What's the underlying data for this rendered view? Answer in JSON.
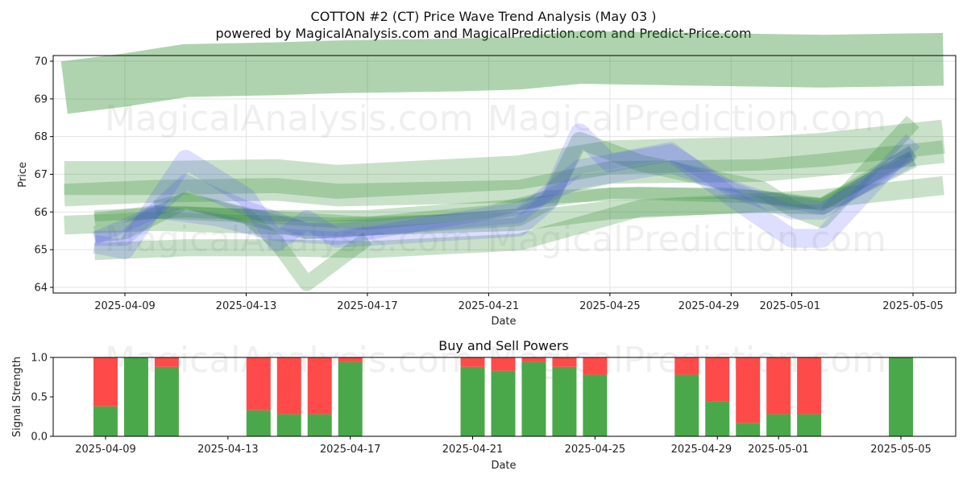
{
  "chart_data": [
    {
      "type": "area",
      "title": "COTTON #2 (CT) Price Wave Trend Analysis (May 03 )",
      "subtitle": "powered by MagicalAnalysis.com and MagicalPrediction.com and Predict-Price.com",
      "xlabel": "Date",
      "ylabel": "Price",
      "ylim": [
        63.85,
        70.15
      ],
      "yticks": [
        "64",
        "65",
        "66",
        "67",
        "68",
        "69",
        "70"
      ],
      "xticks": [
        "2025-04-09",
        "2025-04-13",
        "2025-04-17",
        "2025-04-21",
        "2025-04-25",
        "2025-04-29",
        "2025-05-01",
        "2025-05-05"
      ],
      "grid": true,
      "watermarks": [
        "MagicalAnalysis.com",
        "MagicalPrediction.com"
      ],
      "series": [
        {
          "color": "#2e8b2e",
          "x": [
            "2025-04-07",
            "2025-04-09",
            "2025-04-11",
            "2025-04-14",
            "2025-04-16",
            "2025-04-20",
            "2025-04-22",
            "2025-04-24",
            "2025-04-28",
            "2025-05-02",
            "2025-05-06"
          ],
          "y": [
            69.3,
            69.5,
            69.75,
            69.8,
            69.85,
            69.9,
            69.95,
            70.1,
            70.05,
            70.0,
            70.05
          ],
          "width": 1.4
        },
        {
          "color": "#2e8b2e",
          "x": [
            "2025-04-07",
            "2025-04-10",
            "2025-04-14",
            "2025-04-16",
            "2025-04-22",
            "2025-04-25",
            "2025-04-30",
            "2025-05-02",
            "2025-05-06"
          ],
          "y": [
            66.9,
            66.9,
            66.95,
            66.8,
            67.05,
            67.45,
            67.55,
            67.65,
            68.0
          ],
          "width": 0.9
        },
        {
          "color": "#2e8b2e",
          "x": [
            "2025-04-07",
            "2025-04-10",
            "2025-04-14",
            "2025-04-16",
            "2025-04-22",
            "2025-04-25",
            "2025-04-30",
            "2025-05-02",
            "2025-05-06"
          ],
          "y": [
            66.45,
            66.55,
            66.6,
            66.45,
            66.55,
            67.05,
            67.1,
            67.25,
            67.6
          ],
          "width": 0.6
        },
        {
          "color": "#2e8b2e",
          "x": [
            "2025-04-07",
            "2025-04-10",
            "2025-04-14",
            "2025-04-16",
            "2025-04-22",
            "2025-04-25",
            "2025-04-30",
            "2025-05-02",
            "2025-05-06"
          ],
          "y": [
            65.65,
            65.75,
            65.65,
            65.6,
            65.75,
            66.05,
            66.25,
            66.35,
            66.7
          ],
          "width": 0.5
        },
        {
          "color": "#2e8b2e",
          "x": [
            "2025-04-08",
            "2025-04-09",
            "2025-04-11",
            "2025-04-13",
            "2025-04-15",
            "2025-04-17",
            "2025-04-22",
            "2025-04-23",
            "2025-04-24",
            "2025-04-26",
            "2025-04-30",
            "2025-05-01",
            "2025-05-02",
            "2025-05-05"
          ],
          "y": [
            65.4,
            65.5,
            66.3,
            65.9,
            65.5,
            65.6,
            65.85,
            66.3,
            67.9,
            67.3,
            66.6,
            66.1,
            65.8,
            68.4
          ],
          "width": 0.45
        },
        {
          "color": "#2e8b2e",
          "x": [
            "2025-04-08",
            "2025-04-10",
            "2025-04-13",
            "2025-04-15",
            "2025-04-17",
            "2025-04-21",
            "2025-04-23",
            "2025-04-26",
            "2025-04-30",
            "2025-05-02",
            "2025-05-05"
          ],
          "y": [
            65.8,
            66.0,
            65.9,
            65.8,
            65.7,
            66.0,
            66.4,
            66.5,
            66.4,
            66.2,
            67.6
          ],
          "width": 0.35
        },
        {
          "color": "#2e8b2e",
          "x": [
            "2025-04-08",
            "2025-04-11",
            "2025-04-14",
            "2025-04-17",
            "2025-04-22",
            "2025-04-25",
            "2025-04-29",
            "2025-05-02",
            "2025-05-05"
          ],
          "y": [
            65.9,
            66.0,
            65.9,
            65.9,
            66.2,
            66.5,
            66.5,
            66.2,
            67.5
          ],
          "width": 0.3
        },
        {
          "color": "#2e8b2e",
          "x": [
            "2025-04-08",
            "2025-04-11",
            "2025-04-14",
            "2025-04-17",
            "2025-04-22",
            "2025-04-26",
            "2025-04-30",
            "2025-05-02",
            "2025-05-05"
          ],
          "y": [
            64.95,
            65.05,
            65.05,
            65.0,
            65.2,
            66.1,
            66.2,
            66.15,
            67.4
          ],
          "width": 0.45
        },
        {
          "color": "#2e8b2e",
          "x": [
            "2025-04-10",
            "2025-04-11",
            "2025-04-13",
            "2025-04-14",
            "2025-04-15",
            "2025-04-17"
          ],
          "y": [
            66.1,
            66.3,
            65.9,
            65.2,
            64.1,
            65.3
          ],
          "width": 0.4
        },
        {
          "color": "#4a4aff",
          "x": [
            "2025-04-08",
            "2025-04-09",
            "2025-04-11",
            "2025-04-13",
            "2025-04-14",
            "2025-04-15",
            "2025-04-16",
            "2025-04-22",
            "2025-04-23",
            "2025-04-24",
            "2025-04-25",
            "2025-04-27",
            "2025-04-29",
            "2025-05-01",
            "2025-05-02",
            "2025-05-05"
          ],
          "y": [
            65.15,
            65.0,
            67.4,
            66.4,
            65.2,
            65.8,
            65.3,
            65.6,
            66.3,
            68.1,
            67.3,
            67.6,
            66.4,
            65.3,
            65.3,
            67.9
          ],
          "width": 0.5
        },
        {
          "color": "#4a4aff",
          "x": [
            "2025-04-08",
            "2025-04-09",
            "2025-04-11",
            "2025-04-13",
            "2025-04-15",
            "2025-04-16",
            "2025-04-22",
            "2025-04-24",
            "2025-04-27",
            "2025-04-29",
            "2025-05-01",
            "2025-05-02",
            "2025-05-05"
          ],
          "y": [
            65.3,
            65.3,
            66.8,
            66.1,
            65.5,
            65.5,
            65.9,
            67.2,
            67.6,
            66.6,
            66.0,
            66.0,
            67.6
          ],
          "width": 0.4
        },
        {
          "color": "#4a4aff",
          "x": [
            "2025-04-08",
            "2025-04-10",
            "2025-04-12",
            "2025-04-14",
            "2025-04-16",
            "2025-04-22",
            "2025-04-24",
            "2025-04-27",
            "2025-04-30",
            "2025-05-02",
            "2025-05-05"
          ],
          "y": [
            65.3,
            66.0,
            65.8,
            65.4,
            65.3,
            66.1,
            66.8,
            67.2,
            66.4,
            66.1,
            67.4
          ],
          "width": 0.35
        }
      ]
    },
    {
      "type": "bar",
      "title": "Buy and Sell Powers",
      "xlabel": "Date",
      "ylabel": "Signal Strength",
      "ylim": [
        0,
        1.0
      ],
      "yticks": [
        "0.0",
        "0.5",
        "1.0"
      ],
      "xticks": [
        "2025-04-09",
        "2025-04-13",
        "2025-04-17",
        "2025-04-21",
        "2025-04-25",
        "2025-04-29",
        "2025-05-01",
        "2025-05-05"
      ],
      "categories": [
        "2025-04-09",
        "2025-04-10",
        "2025-04-11",
        "2025-04-14",
        "2025-04-15",
        "2025-04-16",
        "2025-04-17",
        "2025-04-21",
        "2025-04-22",
        "2025-04-23",
        "2025-04-24",
        "2025-04-25",
        "2025-04-28",
        "2025-04-29",
        "2025-04-30",
        "2025-05-01",
        "2025-05-02",
        "2025-05-05"
      ],
      "series": [
        {
          "color": "#4aa84a",
          "values": [
            0.38,
            1.0,
            0.88,
            0.33,
            0.28,
            0.28,
            0.94,
            0.88,
            0.83,
            0.94,
            0.88,
            0.78,
            0.78,
            0.44,
            0.17,
            0.28,
            0.28,
            1.0
          ]
        },
        {
          "color": "#ff4a4a",
          "values": [
            0.62,
            0.0,
            0.12,
            0.67,
            0.72,
            0.72,
            0.06,
            0.12,
            0.17,
            0.06,
            0.12,
            0.22,
            0.22,
            0.56,
            0.83,
            0.72,
            0.72,
            0.0
          ]
        }
      ]
    }
  ]
}
